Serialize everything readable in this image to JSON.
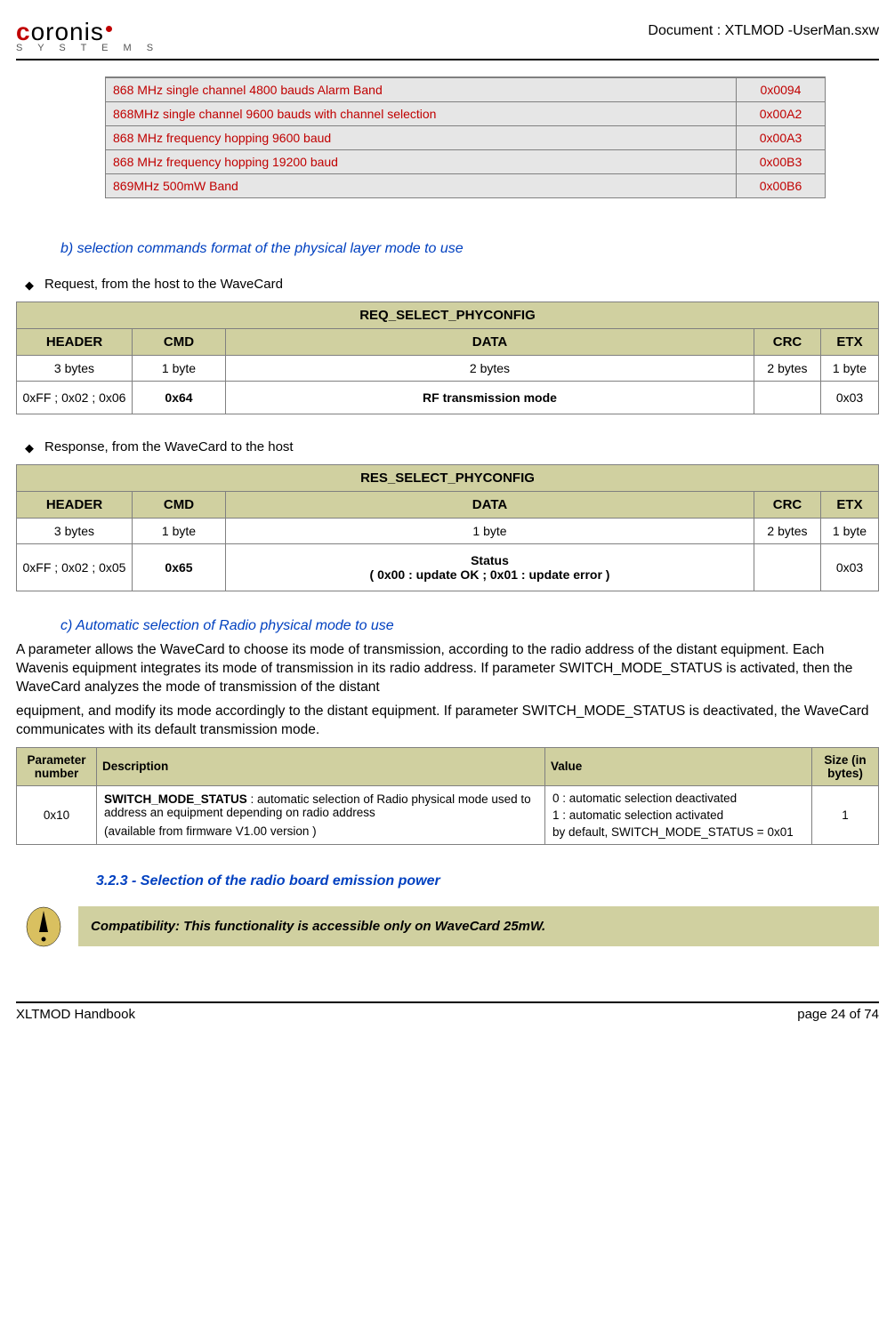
{
  "header": {
    "logo_letters": "oronis",
    "logo_sub": "S Y S T E M S",
    "doc_title": "Document : XTLMOD -UserMan.sxw"
  },
  "band_table": {
    "rows": [
      {
        "desc": "868 MHz single channel 4800 bauds Alarm Band",
        "code": "0x0094"
      },
      {
        "desc": "868MHz single channel  9600 bauds with channel selection",
        "code": "0x00A2"
      },
      {
        "desc": "868 MHz frequency hopping 9600 baud",
        "code": "0x00A3"
      },
      {
        "desc": "868 MHz frequency hopping 19200 baud",
        "code": "0x00B3"
      },
      {
        "desc": "869MHz 500mW Band",
        "code": "0x00B6"
      }
    ]
  },
  "section_b": "b) selection commands format of the physical layer mode to use",
  "request_label": "Request, from the host to the WaveCard",
  "req_table": {
    "title": "REQ_SELECT_PHYCONFIG",
    "cols": [
      "HEADER",
      "CMD",
      "DATA",
      "CRC",
      "ETX"
    ],
    "bytes": [
      "3 bytes",
      "1 byte",
      "2 bytes",
      "2 bytes",
      "1 byte"
    ],
    "vals": [
      "0xFF ; 0x02 ; 0x06",
      "0x64",
      "RF transmission mode",
      "",
      "0x03"
    ]
  },
  "response_label": "Response, from the WaveCard to the host",
  "res_table": {
    "title": "RES_SELECT_PHYCONFIG",
    "cols": [
      "HEADER",
      "CMD",
      "DATA",
      "CRC",
      "ETX"
    ],
    "bytes": [
      "3 bytes",
      "1 byte",
      "1 byte",
      "2 bytes",
      "1 byte"
    ],
    "vals_header": "0xFF ; 0x02 ; 0x05",
    "vals_cmd": "0x65",
    "vals_data_l1": "Status",
    "vals_data_l2": "( 0x00 : update OK ; 0x01 : update error )",
    "vals_crc": "",
    "vals_etx": "0x03"
  },
  "section_c": "c) Automatic selection of Radio physical mode to use",
  "para1": "A parameter allows the WaveCard to choose its mode of transmission, according to the radio address of the distant equipment. Each Wavenis equipment integrates its mode of transmission in its radio address. If parameter SWITCH_MODE_STATUS is activated, then the WaveCard analyzes the mode of transmission of the distant",
  "para2": "equipment, and modify its mode accordingly to the distant equipment. If parameter SWITCH_MODE_STATUS is deactivated, the WaveCard communicates with its default transmission mode.",
  "param_table": {
    "headers": [
      "Parameter number",
      "Description",
      "Value",
      "Size (in bytes)"
    ],
    "row": {
      "num": "0x10",
      "desc_bold": "SWITCH_MODE_STATUS",
      "desc_rest": " : automatic selection of Radio physical mode used to address an equipment  depending on radio address",
      "desc_note": "(available from  firmware V1.00 version )",
      "val_l1": "0 : automatic selection deactivated",
      "val_l2": "1 : automatic selection activated",
      "val_l3": "by default, SWITCH_MODE_STATUS = 0x01",
      "size": "1"
    }
  },
  "section_323": "3.2.3 - Selection of the radio board emission power",
  "compat": "Compatibility: This functionality is accessible only on WaveCard 25mW.",
  "footer": {
    "left": "XLTMOD Handbook",
    "right": "page 24 of 74"
  },
  "colors": {
    "brand_red": "#c00000",
    "heading_blue": "#0040c0",
    "olive": "#d0d0a0",
    "gray_bg": "#e6e6e6",
    "border": "#808080"
  }
}
